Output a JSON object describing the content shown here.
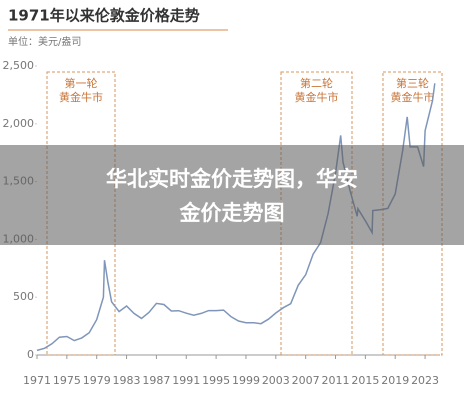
{
  "chart_data": {
    "type": "line",
    "title": "1971年以来伦敦金价格走势",
    "subtitle": "单位：美元/盎司",
    "overlay_text": "华北实时金价走势图，华安金价走势图",
    "annotations": [
      "第一轮\n黄金牛市",
      "第二轮\n黄金牛市",
      "第三轮\n黄金牛市"
    ],
    "x": [
      1971,
      1972,
      1973,
      1974,
      1975,
      1976,
      1977,
      1978,
      1979,
      1979.9,
      1980.05,
      1980.5,
      1981,
      1982,
      1983,
      1984,
      1985,
      1986,
      1987,
      1988,
      1989,
      1990,
      1991,
      1992,
      1993,
      1994,
      1995,
      1996,
      1997,
      1998,
      1999,
      2000,
      2001,
      2002,
      2003,
      2004,
      2005,
      2006,
      2007,
      2008,
      2009,
      2010,
      2011,
      2011.7,
      2012,
      2013,
      2013.9,
      2014,
      2015,
      2015.9,
      2016,
      2017,
      2018,
      2019,
      2020,
      2020.6,
      2021,
      2022,
      2022.8,
      2023,
      2024,
      2024.3
    ],
    "series": [
      {
        "color": "#7f96ba",
        "values": [
          40,
          58,
          97,
          154,
          160,
          125,
          148,
          193,
          306,
          500,
          820,
          630,
          460,
          375,
          424,
          360,
          317,
          368,
          446,
          437,
          381,
          383,
          362,
          344,
          360,
          384,
          384,
          388,
          331,
          294,
          279,
          279,
          271,
          310,
          363,
          409,
          444,
          603,
          695,
          872,
          972,
          1224,
          1571,
          1900,
          1669,
          1411,
          1200,
          1266,
          1160,
          1060,
          1250,
          1257,
          1268,
          1393,
          1770,
          2060,
          1800,
          1800,
          1630,
          1940,
          2200,
          2350
        ]
      }
    ],
    "xlim": [
      1971,
      2025
    ],
    "xticks": [
      1971,
      1975,
      1979,
      1983,
      1987,
      1991,
      1995,
      1999,
      2003,
      2007,
      2011,
      2015,
      2019,
      2023
    ],
    "ylim": [
      0,
      2500
    ],
    "yticks": [
      0,
      500,
      {
        "value": 1000,
        "label": "1,000"
      },
      {
        "value": 1500,
        "label": "1,500"
      },
      {
        "value": 2000,
        "label": "2,000"
      },
      {
        "value": 2500,
        "label": "2,500"
      }
    ],
    "grid": false
  }
}
